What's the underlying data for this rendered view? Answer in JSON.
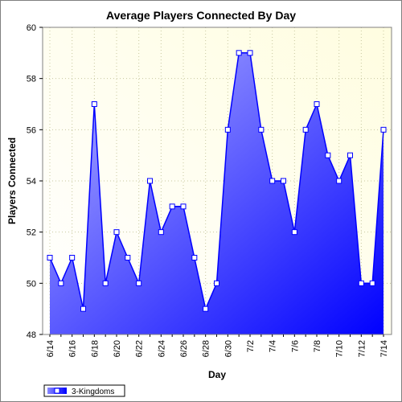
{
  "chart_data": {
    "type": "area",
    "title": "Average Players Connected By Day",
    "xlabel": "Day",
    "ylabel": "Players Connected",
    "ylim": [
      48,
      60
    ],
    "yticks": [
      48,
      50,
      52,
      54,
      56,
      58,
      60
    ],
    "x": [
      "6/14",
      "6/15",
      "6/16",
      "6/17",
      "6/18",
      "6/19",
      "6/20",
      "6/21",
      "6/22",
      "6/23",
      "6/24",
      "6/25",
      "6/26",
      "6/27",
      "6/28",
      "6/29",
      "6/30",
      "7/1",
      "7/2",
      "7/3",
      "7/4",
      "7/5",
      "7/6",
      "7/7",
      "7/8",
      "7/9",
      "7/10",
      "7/11",
      "7/12",
      "7/13",
      "7/14"
    ],
    "x_tick_labels": [
      "6/14",
      "6/16",
      "6/18",
      "6/20",
      "6/22",
      "6/24",
      "6/26",
      "6/28",
      "6/30",
      "7/2",
      "7/4",
      "7/6",
      "7/8",
      "7/10",
      "7/12",
      "7/14"
    ],
    "series": [
      {
        "name": "3-Kingdoms",
        "values": [
          51,
          50,
          51,
          49,
          57,
          50,
          52,
          51,
          50,
          54,
          52,
          53,
          53,
          51,
          49,
          50,
          56,
          59,
          59,
          56,
          54,
          54,
          52,
          56,
          57,
          55,
          54,
          55,
          50,
          50,
          56
        ]
      }
    ],
    "grid": true,
    "legend_position": "bottom-left",
    "colors": {
      "plot_bg_top": "#fffde0",
      "plot_bg_bottom": "#ffffff",
      "line": "#0000ff",
      "fill_left": "#a8a8ff",
      "fill_right": "#0000ff",
      "marker_fill": "#ffffff",
      "marker_stroke": "#0000ff"
    }
  }
}
